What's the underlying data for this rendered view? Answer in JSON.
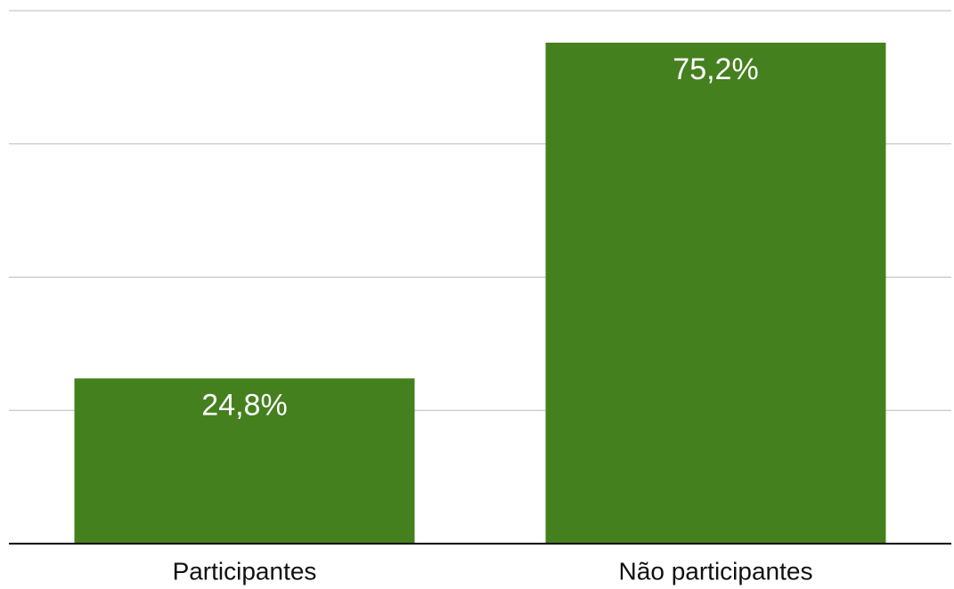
{
  "chart_data": {
    "type": "bar",
    "categories": [
      "Participantes",
      "Não participantes"
    ],
    "values": [
      24.8,
      75.2
    ],
    "value_labels": [
      "24,8%",
      "75,2%"
    ],
    "color": "#44801e",
    "ylim": [
      0,
      80
    ],
    "yticks": [
      0,
      20,
      40,
      60,
      80
    ],
    "grid": true
  }
}
